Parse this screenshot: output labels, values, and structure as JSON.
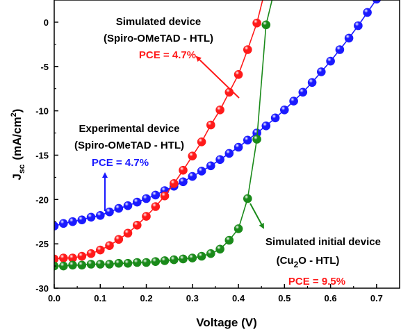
{
  "chart_data": {
    "type": "line",
    "xlabel": "Voltage (V)",
    "ylabel": {
      "main": "J",
      "sub": "sc",
      "unit": "(mA/cm",
      "sup": "2",
      "close": ")"
    },
    "xlim": [
      0,
      0.75
    ],
    "ylim": [
      -30,
      2.5
    ],
    "x_ticks": [
      "0.0",
      "0.1",
      "0.2",
      "0.3",
      "0.4",
      "0.5",
      "0.6",
      "0.7"
    ],
    "y_ticks": [
      "0",
      "-5",
      "-10",
      "-15",
      "-20",
      "-25",
      "-30"
    ],
    "grid": false,
    "series": [
      {
        "key": "experimental",
        "color": "#1a1aff",
        "points": [
          [
            0.0,
            -23.0
          ],
          [
            0.02,
            -22.7
          ],
          [
            0.04,
            -22.5
          ],
          [
            0.06,
            -22.3
          ],
          [
            0.08,
            -22.0
          ],
          [
            0.1,
            -21.8
          ],
          [
            0.12,
            -21.4
          ],
          [
            0.14,
            -21.0
          ],
          [
            0.16,
            -20.7
          ],
          [
            0.18,
            -20.3
          ],
          [
            0.2,
            -19.9
          ],
          [
            0.22,
            -19.5
          ],
          [
            0.24,
            -19.0
          ],
          [
            0.26,
            -18.5
          ],
          [
            0.28,
            -18.0
          ],
          [
            0.3,
            -17.4
          ],
          [
            0.32,
            -16.8
          ],
          [
            0.34,
            -16.2
          ],
          [
            0.36,
            -15.5
          ],
          [
            0.38,
            -14.8
          ],
          [
            0.4,
            -14.1
          ],
          [
            0.42,
            -13.3
          ],
          [
            0.44,
            -12.5
          ],
          [
            0.46,
            -11.7
          ],
          [
            0.48,
            -10.8
          ],
          [
            0.5,
            -9.9
          ],
          [
            0.52,
            -8.9
          ],
          [
            0.54,
            -7.9
          ],
          [
            0.56,
            -6.8
          ],
          [
            0.58,
            -5.6
          ],
          [
            0.6,
            -4.4
          ],
          [
            0.62,
            -3.1
          ],
          [
            0.64,
            -1.8
          ],
          [
            0.66,
            -0.4
          ],
          [
            0.68,
            1.1
          ],
          [
            0.7,
            2.6
          ]
        ]
      },
      {
        "key": "simulated_spiro",
        "color": "#ff1a1a",
        "points": [
          [
            0.0,
            -26.7
          ],
          [
            0.02,
            -26.6
          ],
          [
            0.04,
            -26.6
          ],
          [
            0.06,
            -26.4
          ],
          [
            0.08,
            -26.1
          ],
          [
            0.1,
            -25.7
          ],
          [
            0.12,
            -25.2
          ],
          [
            0.14,
            -24.5
          ],
          [
            0.16,
            -23.8
          ],
          [
            0.18,
            -22.9
          ],
          [
            0.2,
            -21.9
          ],
          [
            0.22,
            -20.8
          ],
          [
            0.24,
            -19.6
          ],
          [
            0.26,
            -18.2
          ],
          [
            0.28,
            -16.7
          ],
          [
            0.3,
            -15.1
          ],
          [
            0.32,
            -13.5
          ],
          [
            0.34,
            -11.6
          ],
          [
            0.36,
            -9.9
          ],
          [
            0.38,
            -7.9
          ],
          [
            0.4,
            -5.9
          ],
          [
            0.42,
            -3.1
          ],
          [
            0.44,
            -0.1
          ],
          [
            0.455,
            3.0
          ]
        ]
      },
      {
        "key": "simulated_cu2o",
        "color": "#1a8a1a",
        "points": [
          [
            0.0,
            -27.5
          ],
          [
            0.02,
            -27.5
          ],
          [
            0.04,
            -27.4
          ],
          [
            0.06,
            -27.4
          ],
          [
            0.08,
            -27.3
          ],
          [
            0.1,
            -27.3
          ],
          [
            0.12,
            -27.3
          ],
          [
            0.14,
            -27.2
          ],
          [
            0.16,
            -27.2
          ],
          [
            0.18,
            -27.1
          ],
          [
            0.2,
            -27.1
          ],
          [
            0.22,
            -27.0
          ],
          [
            0.24,
            -26.9
          ],
          [
            0.26,
            -26.8
          ],
          [
            0.28,
            -26.7
          ],
          [
            0.3,
            -26.6
          ],
          [
            0.32,
            -26.4
          ],
          [
            0.34,
            -26.1
          ],
          [
            0.36,
            -25.6
          ],
          [
            0.38,
            -24.6
          ],
          [
            0.4,
            -23.3
          ],
          [
            0.42,
            -19.9
          ],
          [
            0.44,
            -13.2
          ],
          [
            0.46,
            -0.3
          ],
          [
            0.48,
            4.0
          ]
        ]
      }
    ],
    "annotations": {
      "simulated_spiro": {
        "line1": "Simulated device",
        "line2": "(Spiro-OMeTAD - HTL)",
        "pce": "PCE = 4.7%"
      },
      "experimental": {
        "line1": "Experimental device",
        "line2": "(Spiro-OMeTAD - HTL)",
        "pce": "PCE = 4.7%"
      },
      "simulated_cu2o": {
        "line1": "Simulated initial device",
        "line2_pre": "(Cu",
        "line2_sub": "2",
        "line2_post": "O - HTL)",
        "pce": "PCE = 9.5%"
      }
    }
  }
}
